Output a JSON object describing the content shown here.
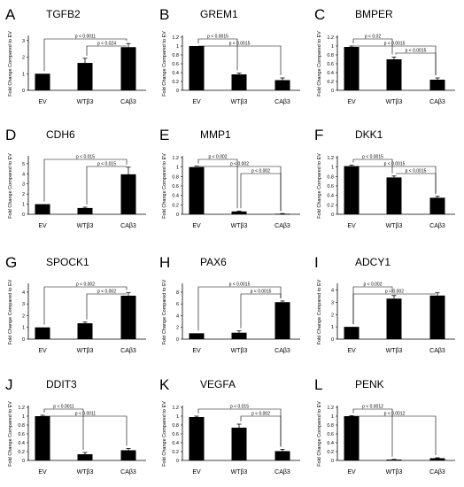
{
  "figure": {
    "bar_color": "#000000",
    "background": "#ffffff"
  },
  "chart_data": [
    {
      "panel": "A",
      "title": "TGFB2",
      "type": "bar",
      "categories": [
        "EV",
        "WTβ3",
        "CAβ3"
      ],
      "values": [
        1.0,
        1.65,
        2.6
      ],
      "errors": [
        0,
        0.28,
        0.22
      ],
      "ylabel": "Fold Change Compared to EV",
      "ylim": [
        0,
        3.2
      ],
      "yticks": [
        0,
        1,
        2,
        3
      ],
      "annotations": [
        {
          "from": 0,
          "to": 2,
          "label": "p < 0.0011"
        },
        {
          "from": 1,
          "to": 2,
          "label": "p < 0.024"
        }
      ]
    },
    {
      "panel": "B",
      "title": "GREM1",
      "type": "bar",
      "categories": [
        "EV",
        "WTβ3",
        "CAβ3"
      ],
      "values": [
        1.0,
        0.36,
        0.23
      ],
      "errors": [
        0,
        0.03,
        0.05
      ],
      "ylabel": "Fold Change Compared to EV",
      "ylim": [
        0,
        1.2
      ],
      "yticks": [
        0,
        0.2,
        0.4,
        0.6,
        0.8,
        1,
        1.2
      ],
      "annotations": [
        {
          "from": 0,
          "to": 1,
          "label": "p < 0.0015"
        },
        {
          "from": 0,
          "to": 2,
          "label": "p < 0.0015"
        }
      ]
    },
    {
      "panel": "C",
      "title": "BMPER",
      "type": "bar",
      "categories": [
        "EV",
        "WTβ3",
        "CAβ3"
      ],
      "values": [
        0.98,
        0.7,
        0.24
      ],
      "errors": [
        0.02,
        0.05,
        0.04
      ],
      "ylabel": "Fold Change Compared to EV",
      "ylim": [
        0,
        1.2
      ],
      "yticks": [
        0,
        0.2,
        0.4,
        0.6,
        0.8,
        1,
        1.2
      ],
      "annotations": [
        {
          "from": 0,
          "to": 1,
          "label": "p < 0.02"
        },
        {
          "from": 0,
          "to": 2,
          "label": "p < 0.0015"
        },
        {
          "from": 1,
          "to": 2,
          "label": "p < 0.0015"
        }
      ]
    },
    {
      "panel": "D",
      "title": "CDH6",
      "type": "bar",
      "categories": [
        "EV",
        "WTβ3",
        "CAβ3"
      ],
      "values": [
        1.0,
        0.62,
        3.95
      ],
      "errors": [
        0,
        0.08,
        0.7
      ],
      "ylabel": "Fold Change Compared to EV",
      "ylim": [
        0,
        5.6
      ],
      "yticks": [
        0,
        1,
        2,
        3,
        4,
        5
      ],
      "annotations": [
        {
          "from": 0,
          "to": 2,
          "label": "p < 0.015"
        },
        {
          "from": 1,
          "to": 2,
          "label": "p < 0.015"
        }
      ]
    },
    {
      "panel": "E",
      "title": "MMP1",
      "type": "bar",
      "categories": [
        "EV",
        "WTβ3",
        "CAβ3"
      ],
      "values": [
        1.0,
        0.06,
        0.01
      ],
      "errors": [
        0.02,
        0.01,
        0.005
      ],
      "ylabel": "Fold Change Compared to EV",
      "ylim": [
        0,
        1.2
      ],
      "yticks": [
        0,
        0.2,
        0.4,
        0.6,
        0.8,
        1,
        1.2
      ],
      "annotations": [
        {
          "from": 0,
          "to": 1,
          "label": "p < 0.002"
        },
        {
          "from": 0,
          "to": 2,
          "label": "p < 0.002"
        },
        {
          "from": 1,
          "to": 2,
          "label": "p < 0.002"
        }
      ]
    },
    {
      "panel": "F",
      "title": "DKK1",
      "type": "bar",
      "categories": [
        "EV",
        "WTβ3",
        "CAβ3"
      ],
      "values": [
        1.02,
        0.78,
        0.35
      ],
      "errors": [
        0.02,
        0.03,
        0.03
      ],
      "ylabel": "Fold Change Compared to EV",
      "ylim": [
        0,
        1.2
      ],
      "yticks": [
        0,
        0.2,
        0.4,
        0.6,
        0.8,
        1,
        1.2
      ],
      "annotations": [
        {
          "from": 0,
          "to": 1,
          "label": "p < 0.0015"
        },
        {
          "from": 0,
          "to": 2,
          "label": "p < 0.0015"
        },
        {
          "from": 1,
          "to": 2,
          "label": "p < 0.0015"
        }
      ]
    },
    {
      "panel": "G",
      "title": "SPOCK1",
      "type": "bar",
      "categories": [
        "EV",
        "WTβ3",
        "CAβ3"
      ],
      "values": [
        1.0,
        1.35,
        3.7
      ],
      "errors": [
        0,
        0.1,
        0.25
      ],
      "ylabel": "Fold Change Compared to EV",
      "ylim": [
        0,
        4.6
      ],
      "yticks": [
        0,
        1,
        2,
        3,
        4
      ],
      "annotations": [
        {
          "from": 0,
          "to": 2,
          "label": "p < 0.002"
        },
        {
          "from": 1,
          "to": 2,
          "label": "p < 0.002"
        }
      ]
    },
    {
      "panel": "H",
      "title": "PAX6",
      "type": "bar",
      "categories": [
        "EV",
        "WTβ3",
        "CAβ3"
      ],
      "values": [
        1.0,
        1.1,
        6.3
      ],
      "errors": [
        0,
        0.3,
        0.2
      ],
      "ylabel": "Fold Change Compared to EV",
      "ylim": [
        0,
        9.2
      ],
      "yticks": [
        0,
        2,
        4,
        6,
        8
      ],
      "annotations": [
        {
          "from": 0,
          "to": 2,
          "label": "p < 0.0015"
        },
        {
          "from": 1,
          "to": 2,
          "label": "p < 0.0015"
        }
      ]
    },
    {
      "panel": "I",
      "title": "ADCY1",
      "type": "bar",
      "categories": [
        "EV",
        "WTβ3",
        "CAβ3"
      ],
      "values": [
        1.0,
        3.3,
        3.55
      ],
      "errors": [
        0,
        0.25,
        0.22
      ],
      "ylabel": "Fold Change Compared to EV",
      "ylim": [
        0,
        4.4
      ],
      "yticks": [
        0,
        1,
        2,
        3,
        4
      ],
      "annotations": [
        {
          "from": 0,
          "to": 1,
          "label": "p < 0.002"
        },
        {
          "from": 0,
          "to": 2,
          "label": "p < 0.002"
        }
      ]
    },
    {
      "panel": "J",
      "title": "DDIT3",
      "type": "bar",
      "categories": [
        "EV",
        "WTβ3",
        "CAβ3"
      ],
      "values": [
        1.0,
        0.14,
        0.23
      ],
      "errors": [
        0.02,
        0.04,
        0.04
      ],
      "ylabel": "Fold Change Compared to EV",
      "ylim": [
        0,
        1.2
      ],
      "yticks": [
        0,
        0.2,
        0.4,
        0.6,
        0.8,
        1,
        1.2
      ],
      "annotations": [
        {
          "from": 0,
          "to": 1,
          "label": "p < 0.0011"
        },
        {
          "from": 0,
          "to": 2,
          "label": "p < 0.0011"
        }
      ]
    },
    {
      "panel": "K",
      "title": "VEGFA",
      "type": "bar",
      "categories": [
        "EV",
        "WTβ3",
        "CAβ3"
      ],
      "values": [
        0.98,
        0.74,
        0.21
      ],
      "errors": [
        0.02,
        0.08,
        0.04
      ],
      "ylabel": "Fold Change Compared to EV",
      "ylim": [
        0,
        1.2
      ],
      "yticks": [
        0,
        0.2,
        0.4,
        0.6,
        0.8,
        1,
        1.2
      ],
      "annotations": [
        {
          "from": 0,
          "to": 2,
          "label": "p < 0.015"
        },
        {
          "from": 1,
          "to": 2,
          "label": "p < 0.002"
        }
      ]
    },
    {
      "panel": "L",
      "title": "PENK",
      "type": "bar",
      "categories": [
        "EV",
        "WTβ3",
        "CAβ3"
      ],
      "values": [
        1.0,
        0.02,
        0.05
      ],
      "errors": [
        0.01,
        0.005,
        0.01
      ],
      "ylabel": "Fold Change Compared to EV",
      "ylim": [
        0,
        1.2
      ],
      "yticks": [
        0,
        0.2,
        0.4,
        0.6,
        0.8,
        1,
        1.2
      ],
      "annotations": [
        {
          "from": 0,
          "to": 1,
          "label": "p < 0.0012"
        },
        {
          "from": 0,
          "to": 2,
          "label": "p < 0.0012"
        }
      ]
    }
  ]
}
